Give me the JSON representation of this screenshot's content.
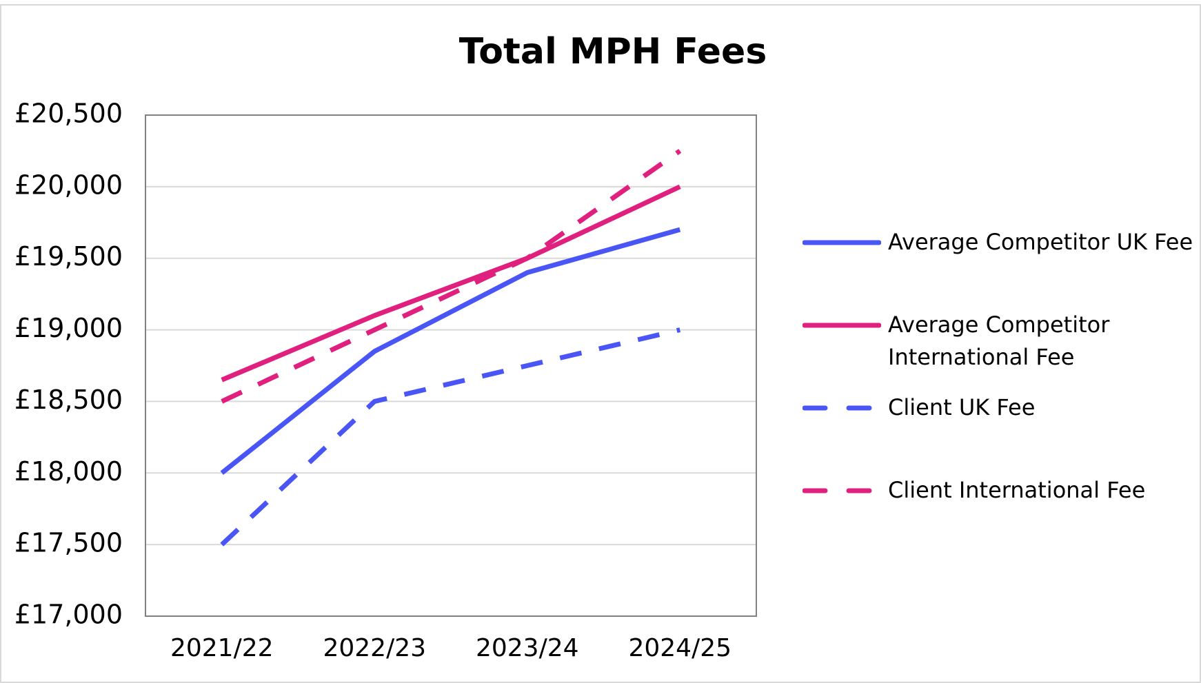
{
  "chart_data": {
    "type": "line",
    "title": "Total MPH Fees",
    "categories": [
      "2021/22",
      "2022/23",
      "2023/24",
      "2024/25"
    ],
    "series": [
      {
        "name": "Average Competitor UK Fee",
        "color": "#4a55f5",
        "style": "solid",
        "values": [
          18000,
          18850,
          19400,
          19700
        ]
      },
      {
        "name": "Average Competitor International Fee",
        "color": "#e0207e",
        "style": "solid",
        "values": [
          18650,
          19100,
          19500,
          20000
        ]
      },
      {
        "name": "Client UK Fee",
        "color": "#4a55f5",
        "style": "dashed",
        "values": [
          17500,
          18500,
          18750,
          19000
        ]
      },
      {
        "name": "Client International Fee",
        "color": "#e0207e",
        "style": "dashed",
        "values": [
          18500,
          19000,
          19500,
          20250
        ]
      }
    ],
    "ylim": [
      17000,
      20500
    ],
    "yticks": [
      {
        "value": 17000,
        "label": "£17,000"
      },
      {
        "value": 17500,
        "label": "£17,500"
      },
      {
        "value": 18000,
        "label": "£18,000"
      },
      {
        "value": 18500,
        "label": "£18,500"
      },
      {
        "value": 19000,
        "label": "£19,000"
      },
      {
        "value": 19500,
        "label": "£19,500"
      },
      {
        "value": 20000,
        "label": "£20,000"
      },
      {
        "value": 20500,
        "label": "£20,500"
      }
    ],
    "grid": true,
    "legend": "right"
  }
}
